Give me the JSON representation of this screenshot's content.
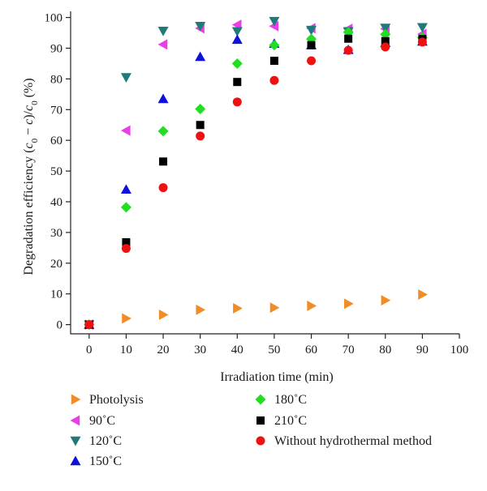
{
  "chart_data": {
    "type": "scatter",
    "title": "",
    "xlabel": "Irradiation time (min)",
    "ylabel": {
      "prefix": "Degradation efficiency (",
      "c": "c",
      "sub": "0",
      "minus": " − ",
      "c2": "c",
      "slash": ")/",
      "c3": "c",
      "sub3": "0",
      "suffix": " (%)"
    },
    "xlim": [
      -5,
      100
    ],
    "ylim": [
      -3,
      102
    ],
    "xticks": [
      0,
      10,
      20,
      30,
      40,
      50,
      60,
      70,
      80,
      90,
      100
    ],
    "yticks": [
      0,
      10,
      20,
      30,
      40,
      50,
      60,
      70,
      80,
      90,
      100
    ],
    "x": [
      0,
      10,
      20,
      30,
      40,
      50,
      60,
      70,
      80,
      90
    ],
    "grid": false,
    "legend_placement": "bottom",
    "series": [
      {
        "name": "Photolysis",
        "marker": "triangle-right",
        "color": "#F28C28",
        "values": [
          0,
          2,
          3.2,
          4.8,
          5.3,
          5.5,
          6.1,
          6.8,
          7.9,
          9.8
        ]
      },
      {
        "name": "90˚C",
        "marker": "triangle-left",
        "color": "#E83FE8",
        "values": [
          0,
          63.2,
          91.2,
          96.5,
          97.6,
          97.2,
          96.5,
          96.3,
          96.3,
          94.6
        ]
      },
      {
        "name": "120˚C",
        "marker": "triangle-down",
        "color": "#1F7A7A",
        "values": [
          0,
          80.5,
          95.6,
          97.2,
          95.5,
          98.8,
          95.9,
          95.5,
          96.6,
          96.8
        ]
      },
      {
        "name": "150˚C",
        "marker": "triangle-up",
        "color": "#1010DD",
        "values": [
          0,
          44,
          73.5,
          87.2,
          92.8,
          91.5,
          91,
          89.5,
          91.8,
          92.2
        ]
      },
      {
        "name": "180˚C",
        "marker": "diamond",
        "color": "#22DD22",
        "values": [
          0,
          38.2,
          63,
          70.2,
          85,
          91,
          93,
          95.2,
          94.5,
          93.5
        ]
      },
      {
        "name": "210˚C",
        "marker": "square",
        "color": "#000000",
        "values": [
          0,
          26.8,
          53.1,
          65,
          79,
          85.9,
          91,
          93.1,
          92.3,
          93
        ]
      },
      {
        "name": "Without hydrothermal method",
        "marker": "circle",
        "color": "#EE1111",
        "values": [
          0,
          24.8,
          44.6,
          61.4,
          72.5,
          79.5,
          85.9,
          89.3,
          90.4,
          92
        ]
      }
    ]
  }
}
